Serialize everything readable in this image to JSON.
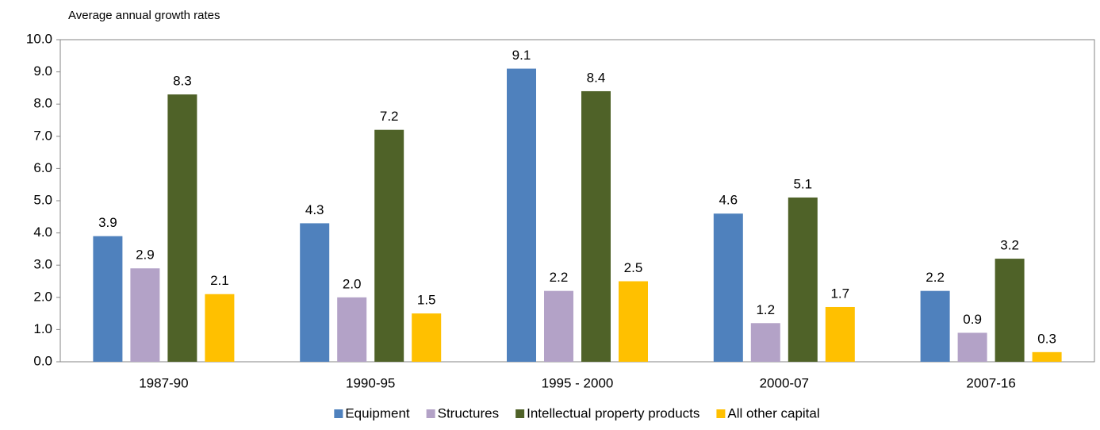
{
  "chart_data": {
    "type": "bar",
    "y_axis_label": "Average annual growth rates",
    "categories": [
      "1987-90",
      "1990-95",
      "1995 - 2000",
      "2000-07",
      "2007-16"
    ],
    "series": [
      {
        "name": "Equipment",
        "color": "#4f81bd",
        "values": [
          3.9,
          4.3,
          9.1,
          4.6,
          2.2
        ],
        "value_labels": [
          "3.9",
          "4.3",
          "9.1",
          "4.6",
          "2.2"
        ]
      },
      {
        "name": "Structures",
        "color": "#b3a2c7",
        "values": [
          2.9,
          2,
          2.2,
          1.2,
          0.9
        ],
        "value_labels": [
          "2.9",
          "2.0",
          "2.2",
          "1.2",
          "0.9"
        ]
      },
      {
        "name": "Intellectual property products",
        "color": "#4f6228",
        "values": [
          8.3,
          7.2,
          8.4,
          5.1,
          3.2
        ],
        "value_labels": [
          "8.3",
          "7.2",
          "8.4",
          "5.1",
          "3.2"
        ]
      },
      {
        "name": "All other capital",
        "color": "#ffc000",
        "values": [
          2.1,
          1.5,
          2.5,
          1.7,
          0.3
        ],
        "value_labels": [
          "2.1",
          "1.5",
          "2.5",
          "1.7",
          "0.3"
        ]
      }
    ],
    "ylim": [
      0,
      10
    ],
    "yticks": [
      {
        "value": 0,
        "label": "0.0"
      },
      {
        "value": 1,
        "label": "1.0"
      },
      {
        "value": 2,
        "label": "2.0"
      },
      {
        "value": 3,
        "label": "3.0"
      },
      {
        "value": 4,
        "label": "4.0"
      },
      {
        "value": 5,
        "label": "5.0"
      },
      {
        "value": 6,
        "label": "6.0"
      },
      {
        "value": 7,
        "label": "7.0"
      },
      {
        "value": 8,
        "label": "8.0"
      },
      {
        "value": 9,
        "label": "9.0"
      },
      {
        "value": 10,
        "label": "10.0"
      }
    ],
    "grid": false,
    "legend": "bottom"
  }
}
